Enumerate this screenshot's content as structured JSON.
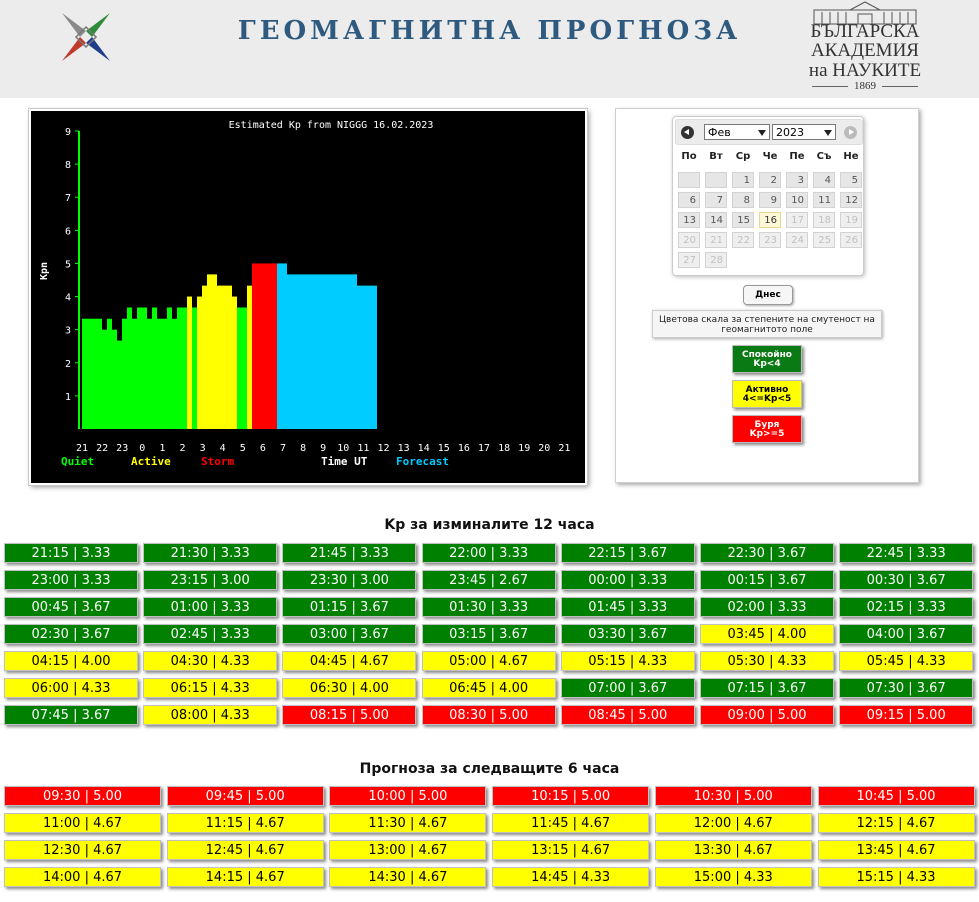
{
  "header": {
    "title": "ГЕОМАГНИТНА ПРОГНОЗА",
    "academy_line1": "БЪЛГАРСКА",
    "academy_line2": "АКАДЕМИЯ",
    "academy_line3": "на НАУКИТЕ",
    "academy_year": "1869"
  },
  "chart_data": {
    "type": "bar",
    "title": "Estimated Kp from NIGGG 16.02.2023",
    "ylabel": "Kpn",
    "xlabel": "Time UT",
    "ylim": [
      0,
      9
    ],
    "yticks": [
      "1",
      "2",
      "3",
      "4",
      "5",
      "6",
      "7",
      "8",
      "9"
    ],
    "xticks": [
      "21",
      "22",
      "23",
      "0",
      "1",
      "2",
      "3",
      "4",
      "5",
      "6",
      "7",
      "8",
      "9",
      "10",
      "11",
      "12",
      "13",
      "14",
      "15",
      "16",
      "17",
      "18",
      "19",
      "20",
      "21"
    ],
    "legend": [
      {
        "label": "Quiet",
        "color": "#00ff00"
      },
      {
        "label": "Active",
        "color": "#ffff00"
      },
      {
        "label": "Storm",
        "color": "#ff0000"
      },
      {
        "label": "Forecast",
        "color": "#00ccff"
      }
    ],
    "estimated": [
      3.33,
      3.33,
      3.33,
      3.33,
      3.0,
      3.33,
      3.0,
      2.67,
      3.33,
      3.67,
      3.33,
      3.67,
      3.67,
      3.33,
      3.67,
      3.33,
      3.33,
      3.67,
      3.33,
      3.67,
      3.67,
      4.0,
      3.67,
      4.0,
      4.33,
      4.67,
      4.67,
      4.33,
      4.33,
      4.33,
      4.0,
      3.67,
      3.67,
      4.33,
      5.0
    ],
    "forecast": [
      5.0,
      5.0,
      5.0,
      5.0,
      5.0,
      5.0,
      4.67,
      4.67,
      4.67,
      4.67,
      4.67,
      4.67,
      4.67,
      4.67,
      4.67,
      4.67,
      4.67,
      4.67,
      4.67,
      4.67,
      4.33,
      4.33,
      4.33,
      4.33
    ]
  },
  "calendar": {
    "month": "Фев",
    "year": "2023",
    "weekdays": [
      "По",
      "Вт",
      "Ср",
      "Че",
      "Пе",
      "Съ",
      "Не"
    ],
    "days": [
      "1",
      "2",
      "3",
      "4",
      "5",
      "6",
      "7",
      "8",
      "9",
      "10",
      "11",
      "12",
      "13",
      "14",
      "15",
      "16",
      "17",
      "18",
      "19",
      "20",
      "21",
      "22",
      "23",
      "24",
      "25",
      "26",
      "27",
      "28"
    ],
    "today_label": "Днес"
  },
  "scale": {
    "caption": "Цветова скала за степените на смутеност на геомагнитото поле",
    "quiet_l1": "Спокойно",
    "quiet_l2": "Kp<4",
    "active_l1": "Активно",
    "active_l2": "4<=Kp<5",
    "storm_l1": "Буря",
    "storm_l2": "Kp>=5"
  },
  "past": {
    "title": "Kp за изминалите 12 часа",
    "items": [
      {
        "t": "21:15 | 3.33",
        "c": "q"
      },
      {
        "t": "21:30 | 3.33",
        "c": "q"
      },
      {
        "t": "21:45 | 3.33",
        "c": "q"
      },
      {
        "t": "22:00 | 3.33",
        "c": "q"
      },
      {
        "t": "22:15 | 3.67",
        "c": "q"
      },
      {
        "t": "22:30 | 3.67",
        "c": "q"
      },
      {
        "t": "22:45 | 3.33",
        "c": "q"
      },
      {
        "t": "23:00 | 3.33",
        "c": "q"
      },
      {
        "t": "23:15 | 3.00",
        "c": "q"
      },
      {
        "t": "23:30 | 3.00",
        "c": "q"
      },
      {
        "t": "23:45 | 2.67",
        "c": "q"
      },
      {
        "t": "00:00 | 3.33",
        "c": "q"
      },
      {
        "t": "00:15 | 3.67",
        "c": "q"
      },
      {
        "t": "00:30 | 3.67",
        "c": "q"
      },
      {
        "t": "00:45 | 3.67",
        "c": "q"
      },
      {
        "t": "01:00 | 3.33",
        "c": "q"
      },
      {
        "t": "01:15 | 3.67",
        "c": "q"
      },
      {
        "t": "01:30 | 3.33",
        "c": "q"
      },
      {
        "t": "01:45 | 3.33",
        "c": "q"
      },
      {
        "t": "02:00 | 3.33",
        "c": "q"
      },
      {
        "t": "02:15 | 3.33",
        "c": "q"
      },
      {
        "t": "02:30 | 3.67",
        "c": "q"
      },
      {
        "t": "02:45 | 3.33",
        "c": "q"
      },
      {
        "t": "03:00 | 3.67",
        "c": "q"
      },
      {
        "t": "03:15 | 3.67",
        "c": "q"
      },
      {
        "t": "03:30 | 3.67",
        "c": "q"
      },
      {
        "t": "03:45 | 4.00",
        "c": "a"
      },
      {
        "t": "04:00 | 3.67",
        "c": "q"
      },
      {
        "t": "04:15 | 4.00",
        "c": "a"
      },
      {
        "t": "04:30 | 4.33",
        "c": "a"
      },
      {
        "t": "04:45 | 4.67",
        "c": "a"
      },
      {
        "t": "05:00 | 4.67",
        "c": "a"
      },
      {
        "t": "05:15 | 4.33",
        "c": "a"
      },
      {
        "t": "05:30 | 4.33",
        "c": "a"
      },
      {
        "t": "05:45 | 4.33",
        "c": "a"
      },
      {
        "t": "06:00 | 4.33",
        "c": "a"
      },
      {
        "t": "06:15 | 4.33",
        "c": "a"
      },
      {
        "t": "06:30 | 4.00",
        "c": "a"
      },
      {
        "t": "06:45 | 4.00",
        "c": "a"
      },
      {
        "t": "07:00 | 3.67",
        "c": "q"
      },
      {
        "t": "07:15 | 3.67",
        "c": "q"
      },
      {
        "t": "07:30 | 3.67",
        "c": "q"
      },
      {
        "t": "07:45 | 3.67",
        "c": "q"
      },
      {
        "t": "08:00 | 4.33",
        "c": "a"
      },
      {
        "t": "08:15 | 5.00",
        "c": "s"
      },
      {
        "t": "08:30 | 5.00",
        "c": "s"
      },
      {
        "t": "08:45 | 5.00",
        "c": "s"
      },
      {
        "t": "09:00 | 5.00",
        "c": "s"
      },
      {
        "t": "09:15 | 5.00",
        "c": "s"
      }
    ]
  },
  "forecast": {
    "title": "Прогноза за следващите 6 часа",
    "items": [
      {
        "t": "09:30 | 5.00",
        "c": "s"
      },
      {
        "t": "09:45 | 5.00",
        "c": "s"
      },
      {
        "t": "10:00 | 5.00",
        "c": "s"
      },
      {
        "t": "10:15 | 5.00",
        "c": "s"
      },
      {
        "t": "10:30 | 5.00",
        "c": "s"
      },
      {
        "t": "10:45 | 5.00",
        "c": "s"
      },
      {
        "t": "11:00 | 4.67",
        "c": "a"
      },
      {
        "t": "11:15 | 4.67",
        "c": "a"
      },
      {
        "t": "11:30 | 4.67",
        "c": "a"
      },
      {
        "t": "11:45 | 4.67",
        "c": "a"
      },
      {
        "t": "12:00 | 4.67",
        "c": "a"
      },
      {
        "t": "12:15 | 4.67",
        "c": "a"
      },
      {
        "t": "12:30 | 4.67",
        "c": "a"
      },
      {
        "t": "12:45 | 4.67",
        "c": "a"
      },
      {
        "t": "13:00 | 4.67",
        "c": "a"
      },
      {
        "t": "13:15 | 4.67",
        "c": "a"
      },
      {
        "t": "13:30 | 4.67",
        "c": "a"
      },
      {
        "t": "13:45 | 4.67",
        "c": "a"
      },
      {
        "t": "14:00 | 4.67",
        "c": "a"
      },
      {
        "t": "14:15 | 4.67",
        "c": "a"
      },
      {
        "t": "14:30 | 4.67",
        "c": "a"
      },
      {
        "t": "14:45 | 4.33",
        "c": "a"
      },
      {
        "t": "15:00 | 4.33",
        "c": "a"
      },
      {
        "t": "15:15 | 4.33",
        "c": "a"
      }
    ]
  }
}
